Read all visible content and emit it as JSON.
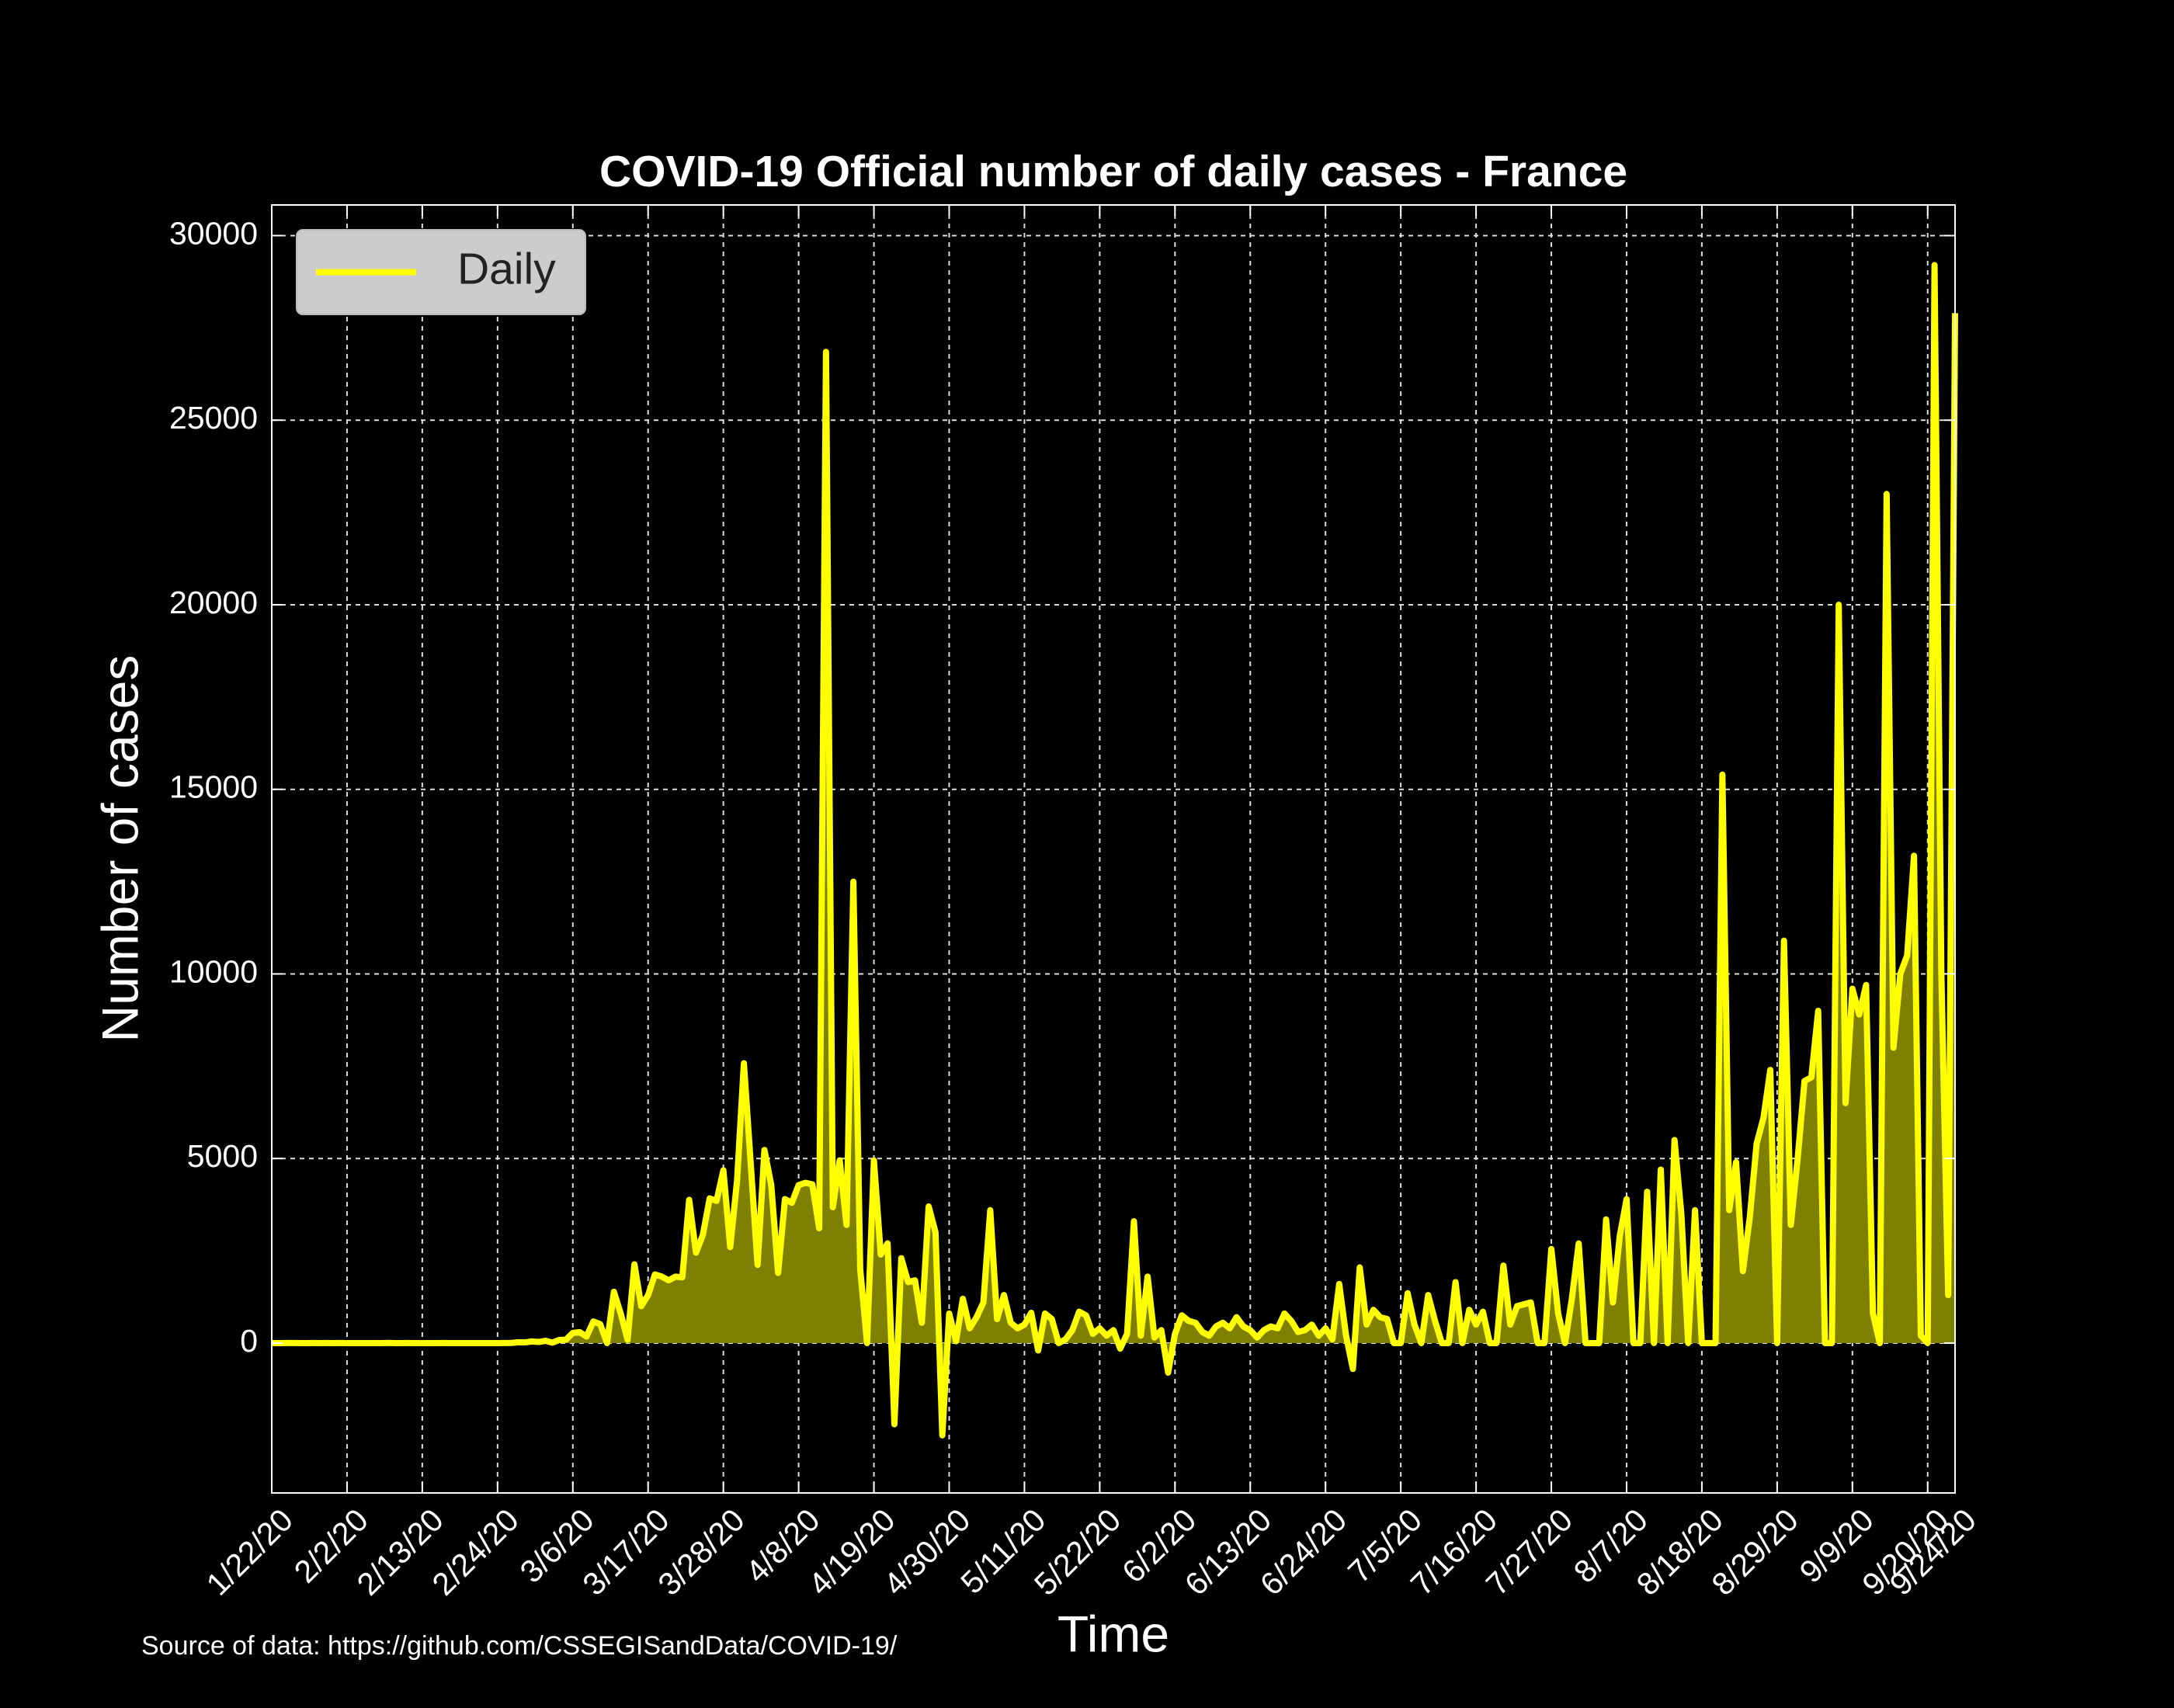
{
  "chart_data": {
    "type": "line",
    "title": "COVID-19 Official number of daily cases - France",
    "xlabel": "Time",
    "ylabel": "Number of cases",
    "source": "Source of data: https://github.com/CSSEGISandData/COVID-19/",
    "x": [
      "1/22/20",
      "1/23/20",
      "1/24/20",
      "1/25/20",
      "1/26/20",
      "1/27/20",
      "1/28/20",
      "1/29/20",
      "1/30/20",
      "1/31/20",
      "2/1/20",
      "2/2/20",
      "2/3/20",
      "2/4/20",
      "2/5/20",
      "2/6/20",
      "2/7/20",
      "2/8/20",
      "2/9/20",
      "2/10/20",
      "2/11/20",
      "2/12/20",
      "2/13/20",
      "2/14/20",
      "2/15/20",
      "2/16/20",
      "2/17/20",
      "2/18/20",
      "2/19/20",
      "2/20/20",
      "2/21/20",
      "2/22/20",
      "2/23/20",
      "2/24/20",
      "2/25/20",
      "2/26/20",
      "2/27/20",
      "2/28/20",
      "2/29/20",
      "3/1/20",
      "3/2/20",
      "3/3/20",
      "3/4/20",
      "3/5/20",
      "3/6/20",
      "3/7/20",
      "3/8/20",
      "3/9/20",
      "3/10/20",
      "3/11/20",
      "3/12/20",
      "3/13/20",
      "3/14/20",
      "3/15/20",
      "3/16/20",
      "3/17/20",
      "3/18/20",
      "3/19/20",
      "3/20/20",
      "3/21/20",
      "3/22/20",
      "3/23/20",
      "3/24/20",
      "3/25/20",
      "3/26/20",
      "3/27/20",
      "3/28/20",
      "3/29/20",
      "3/30/20",
      "3/31/20",
      "4/1/20",
      "4/2/20",
      "4/3/20",
      "4/4/20",
      "4/5/20",
      "4/6/20",
      "4/7/20",
      "4/8/20",
      "4/9/20",
      "4/10/20",
      "4/11/20",
      "4/12/20",
      "4/13/20",
      "4/14/20",
      "4/15/20",
      "4/16/20",
      "4/17/20",
      "4/18/20",
      "4/19/20",
      "4/20/20",
      "4/21/20",
      "4/22/20",
      "4/23/20",
      "4/24/20",
      "4/25/20",
      "4/26/20",
      "4/27/20",
      "4/28/20",
      "4/29/20",
      "4/30/20",
      "5/1/20",
      "5/2/20",
      "5/3/20",
      "5/4/20",
      "5/5/20",
      "5/6/20",
      "5/7/20",
      "5/8/20",
      "5/9/20",
      "5/10/20",
      "5/11/20",
      "5/12/20",
      "5/13/20",
      "5/14/20",
      "5/15/20",
      "5/16/20",
      "5/17/20",
      "5/18/20",
      "5/19/20",
      "5/20/20",
      "5/21/20",
      "5/22/20",
      "5/23/20",
      "5/24/20",
      "5/25/20",
      "5/26/20",
      "5/27/20",
      "5/28/20",
      "5/29/20",
      "5/30/20",
      "5/31/20",
      "6/1/20",
      "6/2/20",
      "6/3/20",
      "6/4/20",
      "6/5/20",
      "6/6/20",
      "6/7/20",
      "6/8/20",
      "6/9/20",
      "6/10/20",
      "6/11/20",
      "6/12/20",
      "6/13/20",
      "6/14/20",
      "6/15/20",
      "6/16/20",
      "6/17/20",
      "6/18/20",
      "6/19/20",
      "6/20/20",
      "6/21/20",
      "6/22/20",
      "6/23/20",
      "6/24/20",
      "6/25/20",
      "6/26/20",
      "6/27/20",
      "6/28/20",
      "6/29/20",
      "6/30/20",
      "7/1/20",
      "7/2/20",
      "7/3/20",
      "7/4/20",
      "7/5/20",
      "7/6/20",
      "7/7/20",
      "7/8/20",
      "7/9/20",
      "7/10/20",
      "7/11/20",
      "7/12/20",
      "7/13/20",
      "7/14/20",
      "7/15/20",
      "7/16/20",
      "7/17/20",
      "7/18/20",
      "7/19/20",
      "7/20/20",
      "7/21/20",
      "7/22/20",
      "7/23/20",
      "7/24/20",
      "7/25/20",
      "7/26/20",
      "7/27/20",
      "7/28/20",
      "7/29/20",
      "7/30/20",
      "7/31/20",
      "8/1/20",
      "8/2/20",
      "8/3/20",
      "8/4/20",
      "8/5/20",
      "8/6/20",
      "8/7/20",
      "8/8/20",
      "8/9/20",
      "8/10/20",
      "8/11/20",
      "8/12/20",
      "8/13/20",
      "8/14/20",
      "8/15/20",
      "8/16/20",
      "8/17/20",
      "8/18/20",
      "8/19/20",
      "8/20/20",
      "8/21/20",
      "8/22/20",
      "8/23/20",
      "8/24/20",
      "8/25/20",
      "8/26/20",
      "8/27/20",
      "8/28/20",
      "8/29/20",
      "8/30/20",
      "8/31/20",
      "9/1/20",
      "9/2/20",
      "9/3/20",
      "9/4/20",
      "9/5/20",
      "9/6/20",
      "9/7/20",
      "9/8/20",
      "9/9/20",
      "9/10/20",
      "9/11/20",
      "9/12/20",
      "9/13/20",
      "9/14/20",
      "9/15/20",
      "9/16/20",
      "9/17/20",
      "9/18/20",
      "9/19/20",
      "9/20/20",
      "9/21/20",
      "9/22/20",
      "9/23/20",
      "9/24/20"
    ],
    "series": [
      {
        "name": "Daily",
        "color": "#ffff00",
        "fill_color": "#808000",
        "values": [
          0,
          0,
          2,
          1,
          0,
          0,
          1,
          0,
          1,
          0,
          1,
          0,
          0,
          0,
          0,
          0,
          0,
          5,
          0,
          0,
          1,
          0,
          0,
          0,
          0,
          1,
          0,
          0,
          0,
          0,
          0,
          0,
          0,
          0,
          2,
          4,
          20,
          19,
          43,
          30,
          61,
          13,
          84,
          92,
          276,
          296,
          177,
          586,
          513,
          0,
          1390,
          800,
          90,
          2134,
          1000,
          1300,
          1860,
          1800,
          1700,
          1800,
          1780,
          3880,
          2450,
          2930,
          3920,
          3850,
          4680,
          2600,
          4400,
          7580,
          4860,
          2120,
          5230,
          4280,
          1900,
          3900,
          3800,
          4280,
          4340,
          4300,
          3110,
          26850,
          3680,
          4950,
          3200,
          12500,
          2000,
          0,
          4950,
          2400,
          2700,
          -2200,
          2300,
          1650,
          1700,
          550,
          3700,
          3000,
          -2500,
          800,
          50,
          1200,
          400,
          700,
          1100,
          3600,
          650,
          1300,
          550,
          400,
          500,
          820,
          -200,
          800,
          650,
          0,
          100,
          350,
          850,
          750,
          250,
          400,
          200,
          350,
          -150,
          250,
          3300,
          200,
          1800,
          150,
          350,
          -800,
          250,
          750,
          600,
          550,
          300,
          200,
          450,
          550,
          400,
          700,
          450,
          350,
          150,
          350,
          450,
          400,
          800,
          600,
          300,
          350,
          500,
          200,
          400,
          100,
          1600,
          200,
          -700,
          2050,
          500,
          900,
          700,
          650,
          0,
          0,
          1350,
          500,
          0,
          1300,
          600,
          0,
          0,
          1650,
          0,
          900,
          500,
          850,
          0,
          0,
          2100,
          500,
          1000,
          1050,
          1100,
          0,
          0,
          2550,
          800,
          0,
          1200,
          2700,
          0,
          0,
          0,
          3350,
          1100,
          2900,
          3900,
          0,
          0,
          4100,
          0,
          4700,
          0,
          5500,
          3500,
          0,
          3600,
          0,
          0,
          0,
          15400,
          3600,
          4900,
          1950,
          3400,
          5400,
          6100,
          7400,
          0,
          10900,
          3200,
          5000,
          7100,
          7200,
          9000,
          0,
          0,
          20000,
          6500,
          9600,
          8900,
          9700,
          800,
          0,
          23000,
          8000,
          10000,
          10500,
          13200,
          200,
          0,
          29200,
          10000,
          1300,
          27900
        ]
      }
    ],
    "xticks": [
      "1/22/20",
      "2/2/20",
      "2/13/20",
      "2/24/20",
      "3/6/20",
      "3/17/20",
      "3/28/20",
      "4/8/20",
      "4/19/20",
      "4/30/20",
      "5/11/20",
      "5/22/20",
      "6/2/20",
      "6/13/20",
      "6/24/20",
      "7/5/20",
      "7/16/20",
      "7/27/20",
      "8/7/20",
      "8/18/20",
      "8/29/20",
      "9/9/20",
      "9/20/20",
      "9/24/20"
    ],
    "ylim": [
      -4060,
      30830
    ],
    "yticks": [
      0,
      5000,
      10000,
      15000,
      20000,
      25000,
      30000
    ],
    "grid": true,
    "legend": "upper left"
  }
}
